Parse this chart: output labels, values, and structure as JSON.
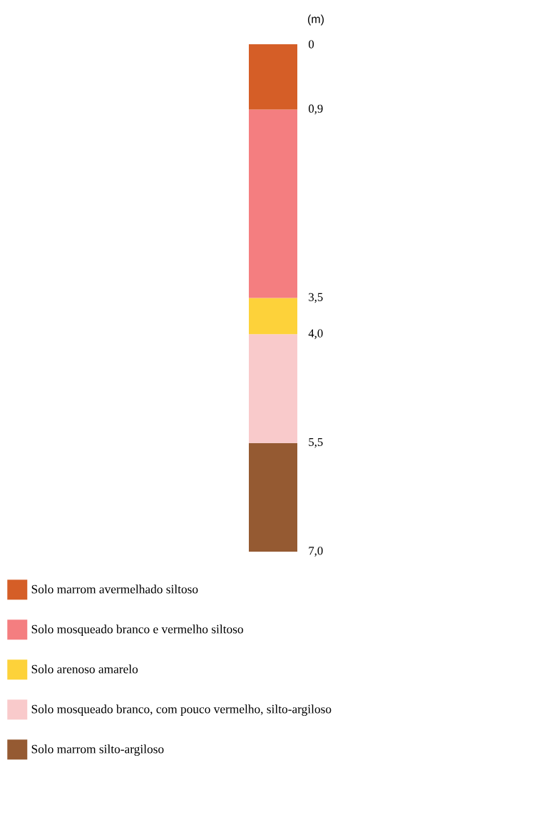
{
  "chart_data": {
    "type": "bar",
    "stacked": true,
    "categories": [
      null
    ],
    "ylabel": "(m)",
    "ylim": [
      7,
      0
    ],
    "yticks": [
      0,
      {
        "value": 0.9,
        "label": "0,9"
      },
      {
        "value": 3.5,
        "label": "3,5"
      },
      {
        "value": 4.0,
        "label": "4,0"
      },
      {
        "value": 5.5,
        "label": "5,5"
      },
      {
        "value": 7.0,
        "label": "7,0"
      }
    ],
    "tick_labels": "y",
    "legend": "bottom",
    "series": [
      {
        "name": "Solo marrom avermelhado siltoso",
        "color": "#d55e27",
        "values": [
          0.9
        ]
      },
      {
        "name": "Solo mosqueado branco e vermelho siltoso",
        "color": "#f47e80",
        "values": [
          2.6
        ]
      },
      {
        "name": "Solo arenoso amarelo",
        "color": "#fdd23a",
        "values": [
          0.5
        ]
      },
      {
        "name": "Solo mosqueado branco, com pouco vermelho, silto-argiloso",
        "color": "#f9cacb",
        "values": [
          1.5
        ]
      },
      {
        "name": "Solo marrom silto-argiloso",
        "color": "#955a32",
        "values": [
          1.5
        ]
      }
    ]
  }
}
